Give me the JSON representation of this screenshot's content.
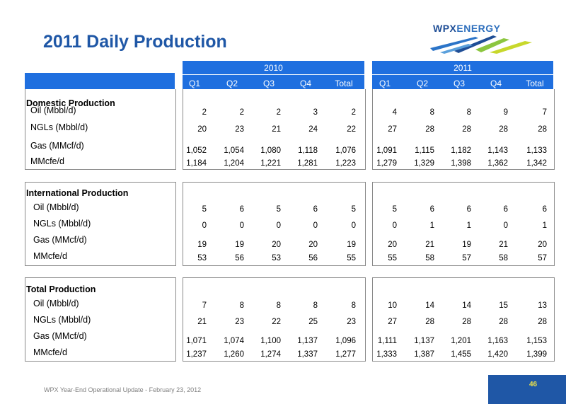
{
  "title": "2011 Daily Production",
  "logo": {
    "brand_a": "WPX",
    "brand_b": "ENERGY"
  },
  "years": [
    "2010",
    "2011"
  ],
  "quarters": [
    "Q1",
    "Q2",
    "Q3",
    "Q4",
    "Total"
  ],
  "sections": [
    {
      "heading": "Domestic Production",
      "rows": [
        {
          "label": "Oil (Mbbl/d)",
          "y2010": [
            "2",
            "2",
            "2",
            "3",
            "2"
          ],
          "y2011": [
            "4",
            "8",
            "8",
            "9",
            "7"
          ]
        },
        {
          "label": "NGLs (Mbbl/d)",
          "y2010": [
            "20",
            "23",
            "21",
            "24",
            "22"
          ],
          "y2011": [
            "27",
            "28",
            "28",
            "28",
            "28"
          ]
        },
        {
          "label": "Gas (MMcf/d)",
          "y2010": [
            "1,052",
            "1,054",
            "1,080",
            "1,118",
            "1,076"
          ],
          "y2011": [
            "1,091",
            "1,115",
            "1,182",
            "1,143",
            "1,133"
          ]
        },
        {
          "label": "MMcfe/d",
          "y2010": [
            "1,184",
            "1,204",
            "1,221",
            "1,281",
            "1,223"
          ],
          "y2011": [
            "1,279",
            "1,329",
            "1,398",
            "1,362",
            "1,342"
          ]
        }
      ]
    },
    {
      "heading": "International Production",
      "rows": [
        {
          "label": "Oil (Mbbl/d)",
          "y2010": [
            "5",
            "6",
            "5",
            "6",
            "5"
          ],
          "y2011": [
            "5",
            "6",
            "6",
            "6",
            "6"
          ]
        },
        {
          "label": "NGLs (Mbbl/d)",
          "y2010": [
            "0",
            "0",
            "0",
            "0",
            "0"
          ],
          "y2011": [
            "0",
            "1",
            "1",
            "0",
            "1"
          ]
        },
        {
          "label": "Gas (MMcf/d)",
          "y2010": [
            "19",
            "19",
            "20",
            "20",
            "19"
          ],
          "y2011": [
            "20",
            "21",
            "19",
            "21",
            "20"
          ]
        },
        {
          "label": "MMcfe/d",
          "y2010": [
            "53",
            "56",
            "53",
            "56",
            "55"
          ],
          "y2011": [
            "55",
            "58",
            "57",
            "58",
            "57"
          ]
        }
      ]
    },
    {
      "heading": "Total Production",
      "rows": [
        {
          "label": "Oil (Mbbl/d)",
          "y2010": [
            "7",
            "8",
            "8",
            "8",
            "8"
          ],
          "y2011": [
            "10",
            "14",
            "14",
            "15",
            "13"
          ]
        },
        {
          "label": "NGLs (Mbbl/d)",
          "y2010": [
            "21",
            "23",
            "22",
            "25",
            "23"
          ],
          "y2011": [
            "27",
            "28",
            "28",
            "28",
            "28"
          ]
        },
        {
          "label": "Gas (MMcf/d)",
          "y2010": [
            "1,071",
            "1,074",
            "1,100",
            "1,137",
            "1,096"
          ],
          "y2011": [
            "1,111",
            "1,137",
            "1,201",
            "1,163",
            "1,153"
          ]
        },
        {
          "label": "MMcfe/d",
          "y2010": [
            "1,237",
            "1,260",
            "1,274",
            "1,337",
            "1,277"
          ],
          "y2011": [
            "1,333",
            "1,387",
            "1,455",
            "1,420",
            "1,399"
          ]
        }
      ]
    }
  ],
  "footer": "WPX Year-End Operational Update - February 23, 2012",
  "page_number": "46",
  "colors": {
    "header_blue": "#1f6fdf",
    "title_blue": "#1f57a6",
    "page_number": "#e9e04a"
  }
}
